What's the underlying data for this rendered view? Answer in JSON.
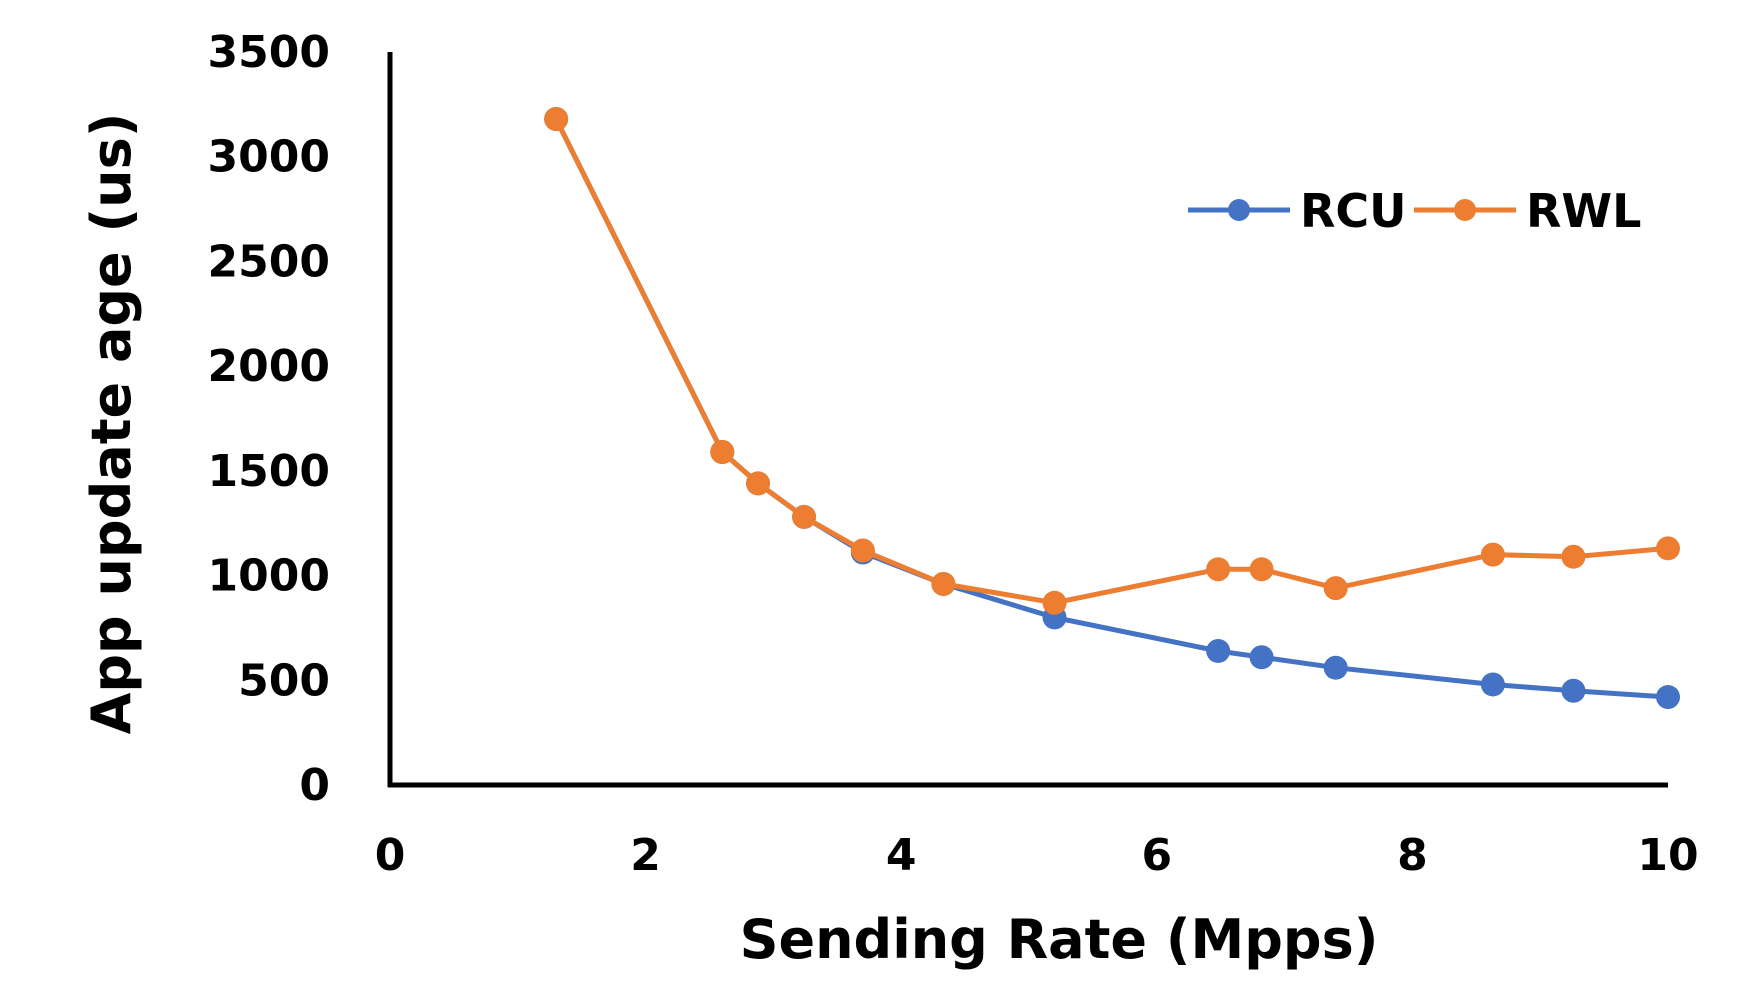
{
  "chart_data": {
    "type": "line",
    "title": "",
    "xlabel": "Sending Rate (Mpps)",
    "ylabel": "App update age (us)",
    "xlim": [
      0,
      10
    ],
    "ylim": [
      0,
      3500
    ],
    "xticks": [
      "0",
      "2",
      "4",
      "6",
      "8",
      "10"
    ],
    "yticks": [
      "0",
      "500",
      "1000",
      "1500",
      "2000",
      "2500",
      "3000",
      "3500"
    ],
    "grid": false,
    "legend_position": "top-right",
    "series": [
      {
        "name": "RCU",
        "color": "#4472C4",
        "x": [
          1.3,
          2.6,
          2.88,
          3.24,
          3.7,
          4.33,
          5.2,
          6.48,
          6.82,
          7.4,
          8.63,
          9.26,
          10.0
        ],
        "y": [
          3180,
          1590,
          1440,
          1280,
          1110,
          960,
          800,
          640,
          610,
          560,
          480,
          450,
          420
        ]
      },
      {
        "name": "RWL",
        "color": "#ED7D31",
        "x": [
          1.3,
          2.6,
          2.88,
          3.24,
          3.7,
          4.33,
          5.2,
          6.48,
          6.82,
          7.4,
          8.63,
          9.26,
          10.0
        ],
        "y": [
          3180,
          1590,
          1440,
          1280,
          1120,
          960,
          870,
          1030,
          1030,
          940,
          1100,
          1090,
          1130
        ]
      }
    ]
  }
}
